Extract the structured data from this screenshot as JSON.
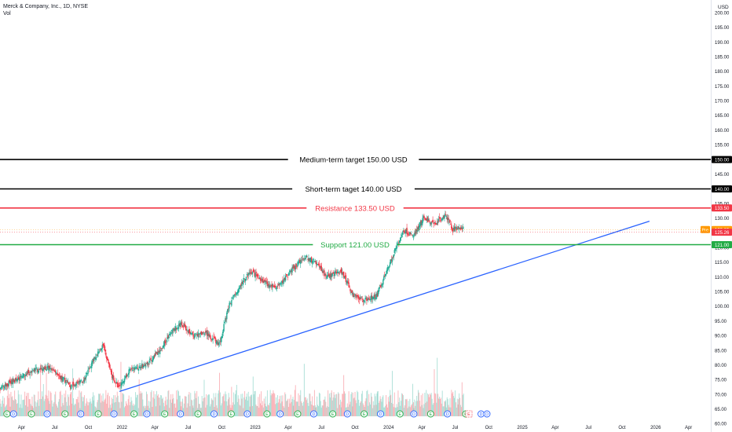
{
  "header": {
    "symbol_line": "Merck & Company, Inc., 1D, NYSE",
    "volume_label": "Vol"
  },
  "currency": "USD",
  "chart_data": {
    "type": "candlestick",
    "title": "Merck & Company, Inc., 1D, NYSE",
    "ylim": [
      58,
      203
    ],
    "y_ticks": [
      60,
      65,
      70,
      75,
      80,
      85,
      90,
      95,
      100,
      105,
      110,
      115,
      120,
      125,
      130,
      135,
      140,
      145,
      150,
      155,
      160,
      165,
      170,
      175,
      180,
      185,
      190,
      195,
      200
    ],
    "x_tick_labels": [
      "Apr",
      "Jul",
      "Oct",
      "2022",
      "Apr",
      "Jul",
      "Oct",
      "2023",
      "Apr",
      "Jul",
      "Oct",
      "2024",
      "Apr",
      "Jul",
      "Oct",
      "2025",
      "Apr",
      "Jul",
      "Oct",
      "2026",
      "Apr"
    ],
    "x_range": [
      "2021-02-01",
      "2026-06-01"
    ],
    "x_ticks_dates": [
      "2021-04-01",
      "2021-07-01",
      "2021-10-01",
      "2022-01-01",
      "2022-04-01",
      "2022-07-01",
      "2022-10-01",
      "2023-01-01",
      "2023-04-01",
      "2023-07-01",
      "2023-10-01",
      "2024-01-01",
      "2024-04-01",
      "2024-07-01",
      "2024-10-01",
      "2025-01-01",
      "2025-04-01",
      "2025-07-01",
      "2025-10-01",
      "2026-01-01",
      "2026-04-01"
    ],
    "price_path": [
      [
        "2021-02-01",
        72
      ],
      [
        "2021-03-15",
        75
      ],
      [
        "2021-05-01",
        78
      ],
      [
        "2021-06-15",
        79
      ],
      [
        "2021-08-15",
        73
      ],
      [
        "2021-09-20",
        75
      ],
      [
        "2021-10-15",
        82
      ],
      [
        "2021-11-10",
        87
      ],
      [
        "2021-12-05",
        76
      ],
      [
        "2021-12-25",
        72
      ],
      [
        "2022-01-20",
        78
      ],
      [
        "2022-03-05",
        80
      ],
      [
        "2022-04-15",
        85
      ],
      [
        "2022-05-20",
        92
      ],
      [
        "2022-06-10",
        94
      ],
      [
        "2022-07-15",
        90
      ],
      [
        "2022-08-20",
        91
      ],
      [
        "2022-09-25",
        87
      ],
      [
        "2022-10-20",
        100
      ],
      [
        "2022-11-25",
        108
      ],
      [
        "2022-12-20",
        112
      ],
      [
        "2023-01-30",
        108
      ],
      [
        "2023-03-01",
        106
      ],
      [
        "2023-04-15",
        113
      ],
      [
        "2023-05-15",
        117
      ],
      [
        "2023-06-15",
        115
      ],
      [
        "2023-07-15",
        110
      ],
      [
        "2023-08-25",
        112
      ],
      [
        "2023-09-25",
        104
      ],
      [
        "2023-10-25",
        102
      ],
      [
        "2023-12-01",
        104
      ],
      [
        "2024-01-05",
        115
      ],
      [
        "2024-02-10",
        126
      ],
      [
        "2024-03-10",
        124
      ],
      [
        "2024-04-05",
        130
      ],
      [
        "2024-05-05",
        128
      ],
      [
        "2024-06-05",
        131
      ],
      [
        "2024-06-25",
        126
      ],
      [
        "2024-07-10",
        127
      ],
      [
        "2024-07-26",
        126
      ]
    ],
    "volume_ylim": [
      0,
      100
    ],
    "resistance_levels": [
      {
        "label": "Medium-term target 150.00 USD",
        "value": 150.0,
        "axis_label": "150.00",
        "color": "#000000"
      },
      {
        "label": "Short-term taget 140.00 USD",
        "value": 140.0,
        "axis_label": "140.00",
        "color": "#000000"
      },
      {
        "label": "Resistance 133.50 USD",
        "value": 133.5,
        "axis_label": "133.50",
        "color": "#f23645"
      },
      {
        "label": "Support 121.00 USD",
        "value": 121.0,
        "axis_label": "121.00",
        "color": "#22ab45"
      }
    ],
    "trendline": {
      "start": [
        "2021-12-25",
        71.0
      ],
      "end": [
        "2025-12-15",
        129.0
      ],
      "color": "#2962ff"
    },
    "price_tags": [
      {
        "label": "Pre",
        "value": 126.15,
        "axis_label": "126.15",
        "color": "#ff9800"
      },
      {
        "label": "",
        "value": 125.26,
        "axis_label": "125.26",
        "color": "#f23645"
      }
    ],
    "event_markers": {
      "dividend_symbol": "D",
      "earnings_symbol": "E",
      "sequence": [
        [
          "2021-02-20",
          "E"
        ],
        [
          "2021-03-10",
          "D"
        ],
        [
          "2021-04-28",
          "E"
        ],
        [
          "2021-06-10",
          "D"
        ],
        [
          "2021-07-29",
          "E"
        ],
        [
          "2021-09-10",
          "D"
        ],
        [
          "2021-10-28",
          "E"
        ],
        [
          "2021-12-10",
          "D"
        ],
        [
          "2022-02-03",
          "E"
        ],
        [
          "2022-03-10",
          "D"
        ],
        [
          "2022-04-28",
          "E"
        ],
        [
          "2022-06-10",
          "D"
        ],
        [
          "2022-07-28",
          "E"
        ],
        [
          "2022-09-10",
          "D"
        ],
        [
          "2022-10-27",
          "E"
        ],
        [
          "2022-12-10",
          "D"
        ],
        [
          "2023-02-02",
          "E"
        ],
        [
          "2023-03-10",
          "D"
        ],
        [
          "2023-04-27",
          "E"
        ],
        [
          "2023-06-10",
          "D"
        ],
        [
          "2023-08-01",
          "E"
        ],
        [
          "2023-09-10",
          "D"
        ],
        [
          "2023-10-26",
          "E"
        ],
        [
          "2023-12-10",
          "D"
        ],
        [
          "2024-02-01",
          "E"
        ],
        [
          "2024-03-10",
          "D"
        ],
        [
          "2024-04-25",
          "E"
        ],
        [
          "2024-06-10",
          "D"
        ],
        [
          "2024-07-30",
          "E"
        ],
        [
          "2024-09-10",
          "D"
        ]
      ]
    }
  }
}
